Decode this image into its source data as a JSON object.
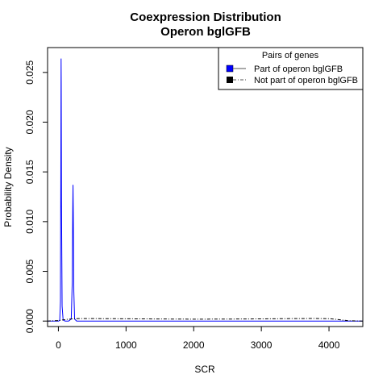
{
  "chart_data": {
    "type": "line",
    "title": "Coexpression Distribution",
    "subtitle": "Operon bglGFB",
    "xlabel": "SCR",
    "ylabel": "Probability Density",
    "xlim": [
      -160,
      4500
    ],
    "ylim": [
      -0.00055,
      0.0275
    ],
    "x_ticks": [
      0,
      1000,
      2000,
      3000,
      4000
    ],
    "x_tick_labels": [
      "0",
      "1000",
      "2000",
      "3000",
      "4000"
    ],
    "y_ticks": [
      0.0,
      0.005,
      0.01,
      0.015,
      0.02,
      0.025
    ],
    "y_tick_labels": [
      "0.000",
      "0.005",
      "0.010",
      "0.015",
      "0.020",
      "0.025"
    ],
    "grid": false,
    "legend": {
      "title": "Pairs of genes",
      "position": "top-right"
    },
    "series": [
      {
        "name": "Part of operon bglGFB",
        "color": "#0000ff",
        "line_style": "solid",
        "x": [
          -160,
          5,
          20,
          30,
          36,
          40,
          42,
          46,
          55,
          70,
          100,
          150,
          190,
          205,
          212,
          216,
          220,
          228,
          240,
          270,
          4500
        ],
        "y": [
          0,
          0,
          0.0001,
          0.002,
          0.015,
          0.0264,
          0.024,
          0.012,
          0.0015,
          0.0001,
          0,
          0,
          0.0002,
          0.004,
          0.011,
          0.0137,
          0.011,
          0.003,
          0.0002,
          0,
          0
        ]
      },
      {
        "name": "Not part of operon bglGFB",
        "color": "#000000",
        "line_style": "dashdot",
        "x": [
          -160,
          0,
          100,
          200,
          300,
          500,
          1000,
          1500,
          2000,
          2500,
          3000,
          3500,
          3800,
          4000,
          4100,
          4200,
          4300,
          4500
        ],
        "y": [
          0,
          5e-05,
          0.00015,
          0.00022,
          0.00025,
          0.00025,
          0.00023,
          0.00021,
          0.00019,
          0.0002,
          0.00022,
          0.00025,
          0.00026,
          0.00024,
          0.00018,
          0.0001,
          3e-05,
          0
        ]
      }
    ]
  }
}
